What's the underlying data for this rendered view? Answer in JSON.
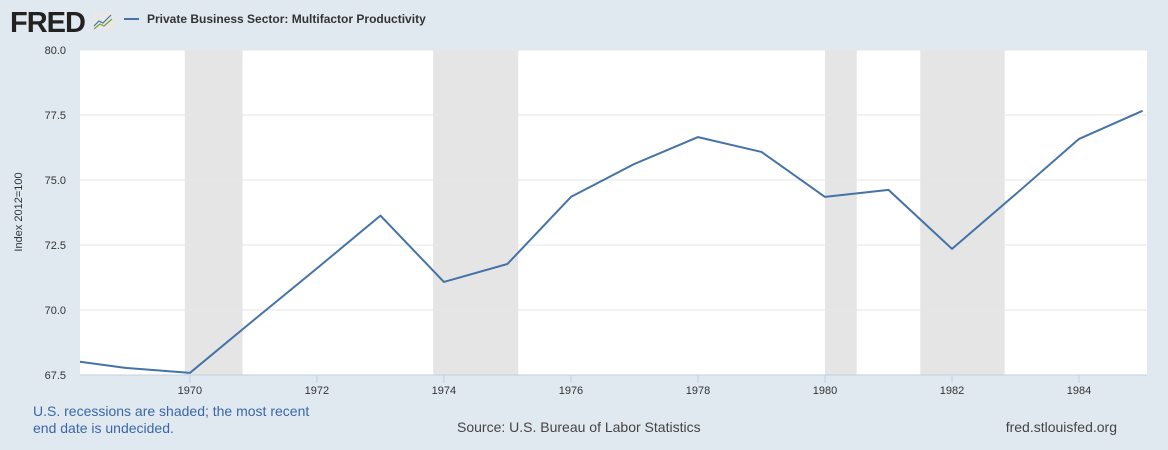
{
  "header": {
    "logo": "FRED",
    "legend_label": "Private Business Sector: Multifactor Productivity"
  },
  "footer": {
    "note": "U.S. recessions are shaded; the most recent end date is undecided.",
    "source": "Source: U.S. Bureau of Labor Statistics",
    "site": "fred.stlouisfed.org"
  },
  "chart_data": {
    "type": "line",
    "title": "Private Business Sector: Multifactor Productivity",
    "xlabel": "",
    "ylabel": "Index 2012=100",
    "x": [
      1968,
      1969,
      1970,
      1971,
      1972,
      1973,
      1974,
      1975,
      1976,
      1977,
      1978,
      1979,
      1980,
      1981,
      1982,
      1983,
      1984,
      1985
    ],
    "series": [
      {
        "name": "Private Business Sector: Multifactor Productivity",
        "color": "#4572a7",
        "values": [
          68.1,
          67.77,
          67.58,
          69.6,
          71.6,
          73.63,
          71.08,
          71.77,
          74.35,
          75.62,
          76.65,
          76.08,
          74.35,
          74.62,
          72.35,
          74.45,
          76.58,
          77.66
        ]
      }
    ],
    "xlim": [
      1968.27,
      1985.07
    ],
    "ylim": [
      67.5,
      80.0
    ],
    "xticks": [
      "1970",
      "1972",
      "1974",
      "1976",
      "1978",
      "1980",
      "1982",
      "1984"
    ],
    "yticks": [
      "67.5",
      "70.0",
      "72.5",
      "75.0",
      "77.5",
      "80.0"
    ],
    "recessions": [
      [
        1969.92,
        1970.83
      ],
      [
        1973.83,
        1975.17
      ],
      [
        1980.0,
        1980.5
      ],
      [
        1981.5,
        1982.83
      ]
    ],
    "grid": true,
    "legend": "top-left"
  }
}
